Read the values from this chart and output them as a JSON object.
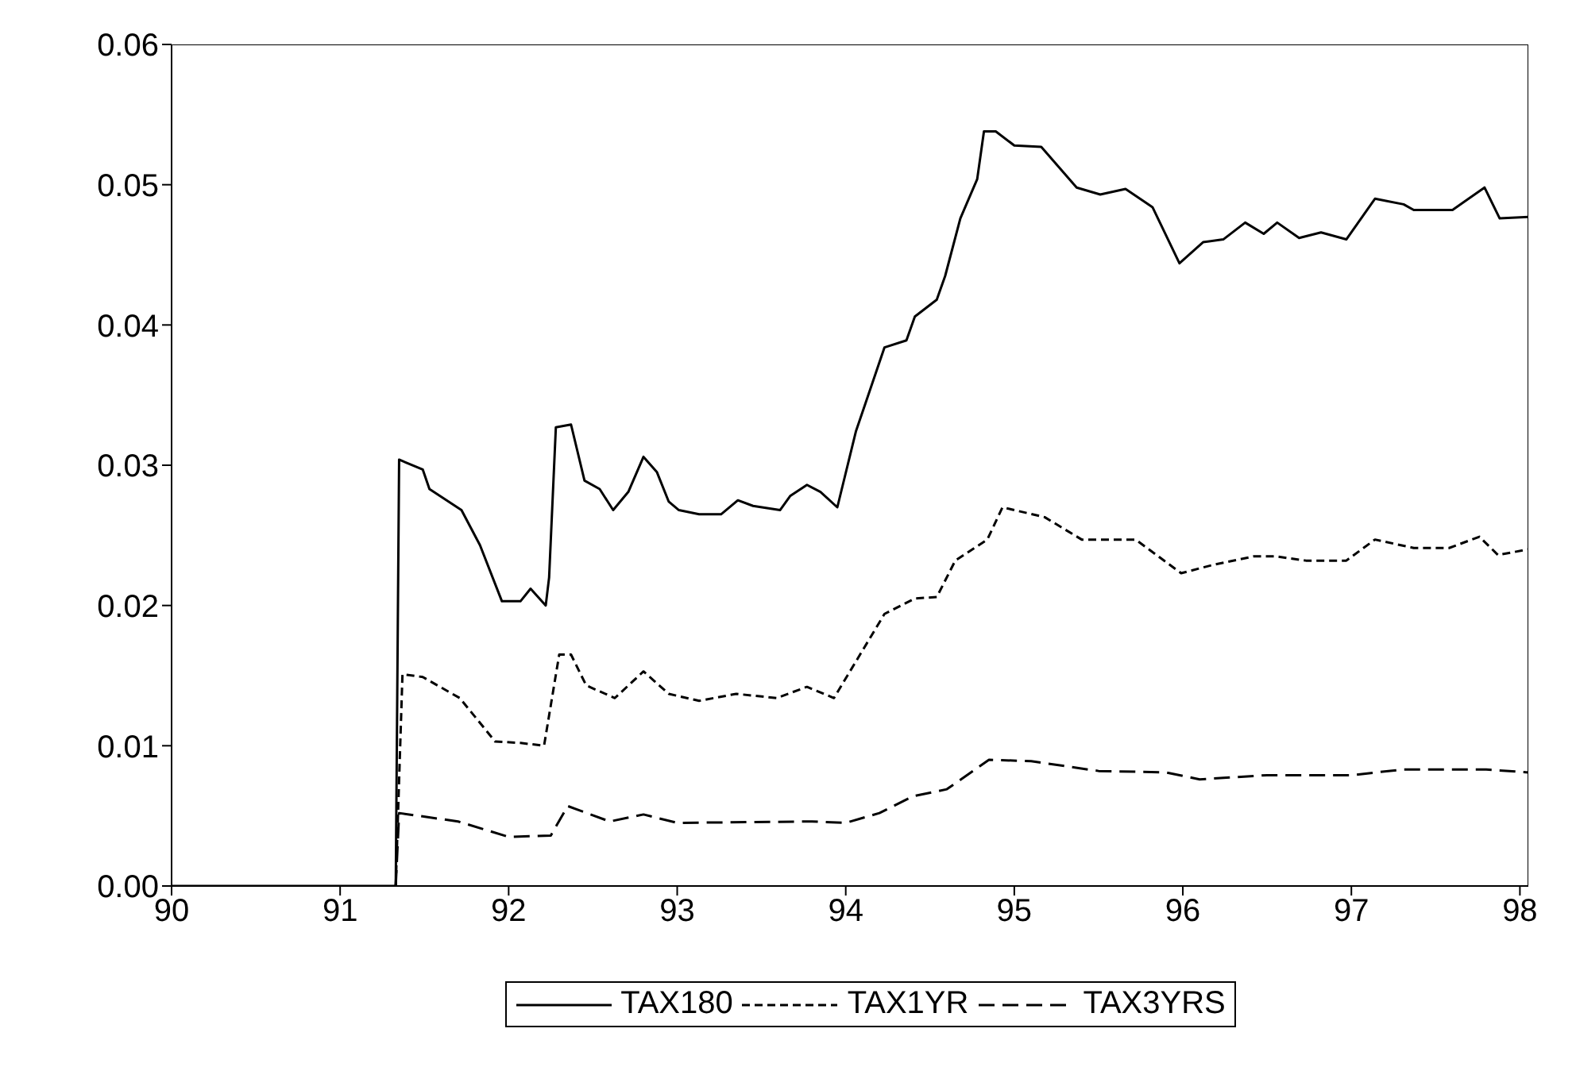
{
  "chart_data": {
    "type": "line",
    "xlim": [
      90,
      98.05
    ],
    "xticks": [
      90,
      91,
      92,
      93,
      94,
      95,
      96,
      97,
      98
    ],
    "ylim": [
      0,
      0.06
    ],
    "yticks": [
      {
        "value": 0,
        "label": "0.00"
      },
      {
        "value": 0.01,
        "label": "0.01"
      },
      {
        "value": 0.02,
        "label": "0.02"
      },
      {
        "value": 0.03,
        "label": "0.03"
      },
      {
        "value": 0.04,
        "label": "0.04"
      },
      {
        "value": 0.05,
        "label": "0.05"
      },
      {
        "value": 0.06,
        "label": "0.06"
      }
    ],
    "grid": false,
    "legend": "bottom",
    "marker": "none",
    "series": [
      {
        "name": "TAX180",
        "color": "#000000",
        "line_style": "solid",
        "x": [
          90,
          91.33,
          91.35,
          91.49,
          91.53,
          91.72,
          91.83,
          91.96,
          92.07,
          92.13,
          92.22,
          92.24,
          92.28,
          92.37,
          92.45,
          92.54,
          92.62,
          92.71,
          92.8,
          92.88,
          92.95,
          93.01,
          93.13,
          93.26,
          93.36,
          93.45,
          93.61,
          93.67,
          93.77,
          93.85,
          93.95,
          94.06,
          94.23,
          94.36,
          94.41,
          94.54,
          94.59,
          94.68,
          94.78,
          94.82,
          94.89,
          95,
          95.16,
          95.37,
          95.51,
          95.66,
          95.82,
          95.98,
          96.12,
          96.24,
          96.37,
          96.48,
          96.56,
          96.69,
          96.82,
          96.97,
          97.14,
          97.31,
          97.37,
          97.6,
          97.79,
          97.88,
          98.05
        ],
        "values": [
          0,
          0,
          0.0304,
          0.0297,
          0.0283,
          0.0268,
          0.0243,
          0.0203,
          0.0203,
          0.0212,
          0.02,
          0.022,
          0.0327,
          0.0329,
          0.0289,
          0.0283,
          0.0268,
          0.0281,
          0.0306,
          0.0295,
          0.0274,
          0.0268,
          0.0265,
          0.0265,
          0.0275,
          0.0271,
          0.0268,
          0.0278,
          0.0286,
          0.0281,
          0.027,
          0.0324,
          0.0384,
          0.0389,
          0.0406,
          0.0418,
          0.0435,
          0.0476,
          0.0504,
          0.0538,
          0.0538,
          0.0528,
          0.0527,
          0.0498,
          0.0493,
          0.0497,
          0.0484,
          0.0444,
          0.0459,
          0.0461,
          0.0473,
          0.0465,
          0.0473,
          0.0462,
          0.0466,
          0.0461,
          0.049,
          0.0486,
          0.0482,
          0.0482,
          0.0498,
          0.0476,
          0.0477
        ]
      },
      {
        "name": "TAX1YR",
        "color": "#000000",
        "line_style": "dotted",
        "x": [
          91.33,
          91.37,
          91.49,
          91.71,
          91.92,
          92.07,
          92.21,
          92.3,
          92.37,
          92.46,
          92.63,
          92.8,
          92.95,
          93.13,
          93.35,
          93.59,
          93.77,
          93.93,
          94.23,
          94.41,
          94.54,
          94.65,
          94.84,
          94.93,
          95.18,
          95.4,
          95.72,
          95.99,
          96.18,
          96.42,
          96.55,
          96.73,
          96.97,
          97.14,
          97.37,
          97.58,
          97.76,
          97.87,
          98.05
        ],
        "values": [
          0,
          0.0151,
          0.0149,
          0.0134,
          0.0103,
          0.0102,
          0.01,
          0.0165,
          0.0165,
          0.0143,
          0.0134,
          0.0153,
          0.0137,
          0.0132,
          0.0137,
          0.0134,
          0.0142,
          0.0134,
          0.0194,
          0.0205,
          0.0206,
          0.0232,
          0.0247,
          0.027,
          0.0263,
          0.0247,
          0.0247,
          0.0223,
          0.0229,
          0.0235,
          0.0235,
          0.0232,
          0.0232,
          0.0247,
          0.0241,
          0.0241,
          0.0249,
          0.0236,
          0.024
        ]
      },
      {
        "name": "TAX3YRS",
        "color": "#000000",
        "line_style": "dashed",
        "x": [
          91.33,
          91.35,
          91.7,
          92,
          92.25,
          92.35,
          92.6,
          92.8,
          93,
          93.8,
          94,
          94.2,
          94.4,
          94.6,
          94.85,
          95.1,
          95.5,
          95.9,
          96.1,
          96.5,
          97,
          97.3,
          97.8,
          98.05
        ],
        "values": [
          0,
          0.0052,
          0.0046,
          0.0035,
          0.0036,
          0.0057,
          0.0046,
          0.0051,
          0.0045,
          0.0046,
          0.0045,
          0.0052,
          0.0064,
          0.0069,
          0.009,
          0.0089,
          0.0082,
          0.0081,
          0.0076,
          0.0079,
          0.0079,
          0.0083,
          0.0083,
          0.0081
        ]
      }
    ]
  }
}
